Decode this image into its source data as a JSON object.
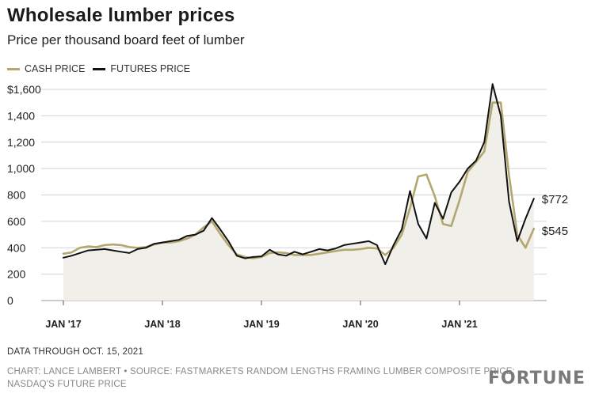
{
  "header": {
    "title": "Wholesale lumber prices",
    "subtitle": "Price per thousand board feet of lumber"
  },
  "colors": {
    "cash": "#b3a770",
    "futures": "#111111",
    "area_fill": "#f1efe9",
    "grid": "#d4d4d4"
  },
  "chart_data": {
    "type": "line",
    "series": [
      {
        "name": "CASH PRICE",
        "x": [
          "2017-01",
          "2017-02",
          "2017-03",
          "2017-04",
          "2017-05",
          "2017-06",
          "2017-07",
          "2017-08",
          "2017-09",
          "2017-10",
          "2017-11",
          "2017-12",
          "2018-01",
          "2018-02",
          "2018-03",
          "2018-04",
          "2018-05",
          "2018-06",
          "2018-07",
          "2018-08",
          "2018-09",
          "2018-10",
          "2018-11",
          "2018-12",
          "2019-01",
          "2019-02",
          "2019-03",
          "2019-04",
          "2019-05",
          "2019-06",
          "2019-07",
          "2019-08",
          "2019-09",
          "2019-10",
          "2019-11",
          "2019-12",
          "2020-01",
          "2020-02",
          "2020-03",
          "2020-04",
          "2020-05",
          "2020-06",
          "2020-07",
          "2020-08",
          "2020-09",
          "2020-10",
          "2020-11",
          "2020-12",
          "2021-01",
          "2021-02",
          "2021-03",
          "2021-04",
          "2021-05",
          "2021-06",
          "2021-07",
          "2021-08",
          "2021-09",
          "2021-10"
        ],
        "values": [
          355,
          365,
          400,
          410,
          405,
          420,
          425,
          420,
          405,
          400,
          405,
          425,
          440,
          440,
          450,
          470,
          500,
          555,
          600,
          505,
          420,
          350,
          330,
          320,
          330,
          360,
          365,
          360,
          345,
          345,
          345,
          355,
          365,
          375,
          385,
          385,
          390,
          400,
          395,
          345,
          400,
          500,
          700,
          940,
          955,
          790,
          580,
          565,
          760,
          975,
          1050,
          1130,
          1500,
          1500,
          950,
          500,
          400,
          545
        ]
      },
      {
        "name": "FUTURES PRICE",
        "x": [
          "2017-01",
          "2017-02",
          "2017-03",
          "2017-04",
          "2017-05",
          "2017-06",
          "2017-07",
          "2017-08",
          "2017-09",
          "2017-10",
          "2017-11",
          "2017-12",
          "2018-01",
          "2018-02",
          "2018-03",
          "2018-04",
          "2018-05",
          "2018-06",
          "2018-07",
          "2018-08",
          "2018-09",
          "2018-10",
          "2018-11",
          "2018-12",
          "2019-01",
          "2019-02",
          "2019-03",
          "2019-04",
          "2019-05",
          "2019-06",
          "2019-07",
          "2019-08",
          "2019-09",
          "2019-10",
          "2019-11",
          "2019-12",
          "2020-01",
          "2020-02",
          "2020-03",
          "2020-04",
          "2020-05",
          "2020-06",
          "2020-07",
          "2020-08",
          "2020-09",
          "2020-10",
          "2020-11",
          "2020-12",
          "2021-01",
          "2021-02",
          "2021-03",
          "2021-04",
          "2021-05",
          "2021-06",
          "2021-07",
          "2021-08",
          "2021-09",
          "2021-10"
        ],
        "values": [
          325,
          340,
          360,
          380,
          385,
          390,
          380,
          370,
          360,
          390,
          400,
          430,
          440,
          450,
          460,
          490,
          500,
          530,
          625,
          540,
          450,
          340,
          320,
          330,
          335,
          385,
          350,
          340,
          370,
          350,
          370,
          390,
          380,
          395,
          420,
          430,
          440,
          450,
          420,
          275,
          420,
          540,
          830,
          580,
          470,
          740,
          620,
          820,
          900,
          1000,
          1060,
          1200,
          1640,
          1400,
          750,
          450,
          620,
          772
        ]
      }
    ],
    "y_ticks": [
      "$1,600",
      "1,400",
      "1,200",
      "1,000",
      "800",
      "600",
      "400",
      "200",
      "0"
    ],
    "ylim": [
      0,
      1600
    ],
    "x_tick_labels": [
      "JAN '17",
      "JAN '18",
      "JAN '19",
      "JAN '20",
      "JAN '21"
    ],
    "end_labels": [
      "$772",
      "$545"
    ],
    "grid": true,
    "legend_position": "top-left"
  },
  "footer": {
    "note": "DATA THROUGH OCT. 15, 2021",
    "credit_line1": "CHART: LANCE LAMBERT • SOURCE: FASTMARKETS RANDOM LENGTHS FRAMING LUMBER COMPOSITE PRICE;",
    "credit_line2": "NASDAQ'S FUTURE PRICE",
    "brand": "FORTUNE"
  }
}
